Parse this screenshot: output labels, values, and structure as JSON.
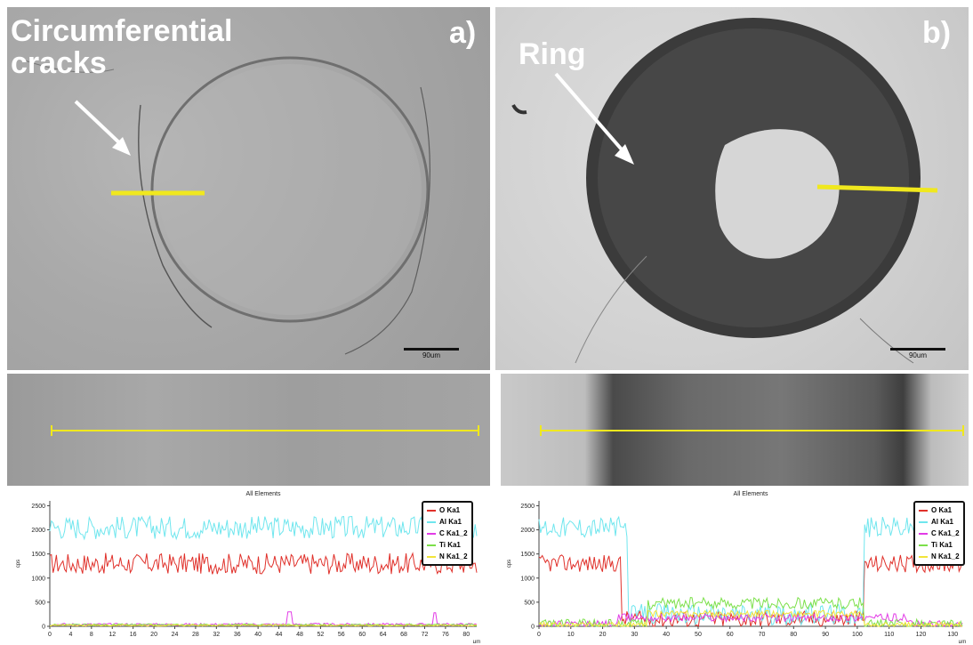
{
  "panel_a": {
    "letter": "a)",
    "label_line1": "Circumferential",
    "label_line2": "cracks",
    "scale_label": "90um"
  },
  "panel_b": {
    "letter": "b)",
    "label": "Ring",
    "scale_label": "90um"
  },
  "colors": {
    "O": "#e0302a",
    "Al": "#6fe6ee",
    "C": "#e23be6",
    "Ti": "#7ce04a",
    "N": "#f2e43a",
    "marker_line": "#f0e81e"
  },
  "chart_data": [
    {
      "type": "line",
      "title": "All Elements",
      "xlabel": "μm",
      "ylabel": "cps",
      "xlim": [
        0,
        82
      ],
      "ylim": [
        0,
        2600
      ],
      "x_ticks": [
        0,
        4,
        8,
        12,
        16,
        20,
        24,
        28,
        32,
        36,
        40,
        44,
        48,
        52,
        56,
        60,
        64,
        68,
        72,
        76,
        80
      ],
      "y_ticks": [
        0,
        500,
        1000,
        1500,
        2000,
        2500
      ],
      "legend": [
        "O Ka1",
        "Al Ka1",
        "C Ka1_2",
        "Ti Ka1",
        "N Ka1_2"
      ],
      "series": [
        {
          "name": "O Ka1",
          "level": 1300,
          "noise": 220,
          "profile": "flat"
        },
        {
          "name": "Al Ka1",
          "level": 2050,
          "noise": 240,
          "profile": "flat"
        },
        {
          "name": "C Ka1_2",
          "level": 40,
          "noise": 25,
          "profile": "flat",
          "spikes": [
            [
              46,
              300
            ],
            [
              74,
              280
            ]
          ]
        },
        {
          "name": "Ti Ka1",
          "level": 30,
          "noise": 20,
          "profile": "flat"
        },
        {
          "name": "N Ka1_2",
          "level": 20,
          "noise": 15,
          "profile": "flat"
        }
      ]
    },
    {
      "type": "line",
      "title": "All Elements",
      "xlabel": "μm",
      "ylabel": "cps",
      "xlim": [
        0,
        133
      ],
      "ylim": [
        0,
        2600
      ],
      "x_ticks": [
        0,
        10,
        20,
        30,
        40,
        50,
        60,
        70,
        80,
        90,
        100,
        110,
        120,
        130
      ],
      "y_ticks": [
        0,
        500,
        1000,
        1500,
        2000,
        2500
      ],
      "legend": [
        "O Ka1",
        "Al Ka1",
        "C Ka1_2",
        "Ti Ka1",
        "N Ka1_2"
      ],
      "series": [
        {
          "name": "O Ka1",
          "outer": 1300,
          "inner": 150,
          "noise": 180,
          "edges": [
            26,
            102
          ]
        },
        {
          "name": "Al Ka1",
          "outer": 2050,
          "inner": 250,
          "noise": 220,
          "edges": [
            28,
            102
          ]
        },
        {
          "name": "C Ka1_2",
          "outer": 40,
          "inner": 180,
          "noise": 80,
          "edges": [
            25,
            116
          ]
        },
        {
          "name": "Ti Ka1",
          "outer": 30,
          "inner": 480,
          "noise": 120,
          "edges": [
            34,
            102
          ]
        },
        {
          "name": "N Ka1_2",
          "outer": 20,
          "inner": 260,
          "noise": 70,
          "edges": [
            34,
            102
          ]
        }
      ]
    }
  ]
}
